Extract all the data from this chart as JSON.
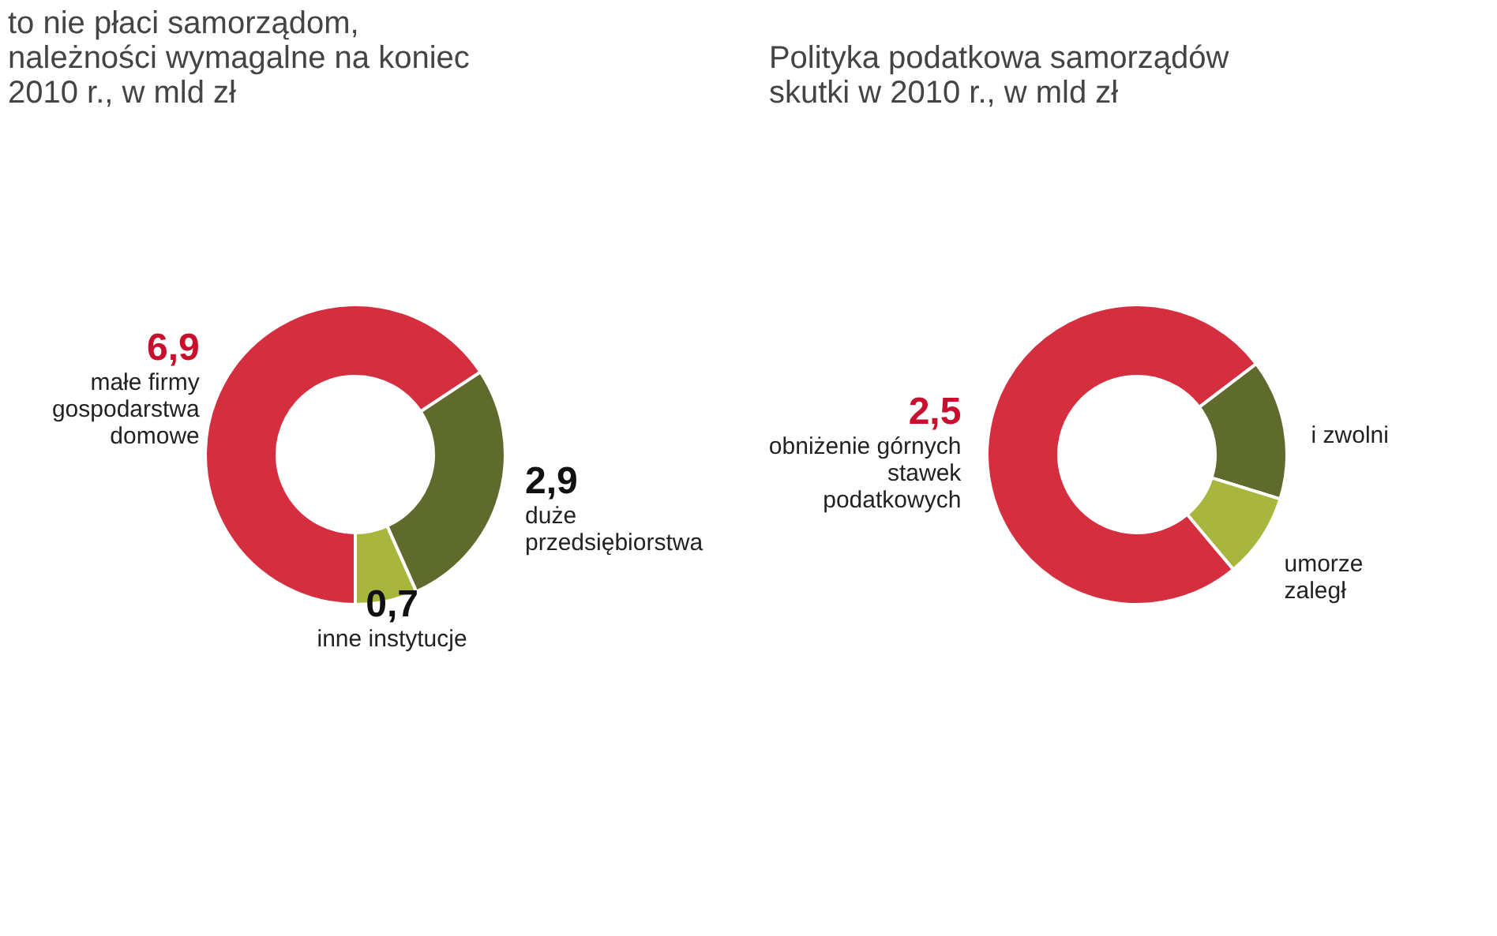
{
  "chart_data": [
    {
      "type": "donut",
      "title": "to nie płaci samorządom,\nnależności wymagalne na koniec\n2010 r., w mld zł",
      "categories": [
        "małe firmy\ngospodarstwa\ndomowe",
        "duże\nprzedsiębiorstwa",
        "inne instytucje"
      ],
      "values": [
        6.9,
        2.9,
        0.7
      ],
      "colors": [
        "#d42e3f",
        "#5f6b2c",
        "#a9b63e"
      ],
      "value_labels": [
        "6,9",
        "2,9",
        "0,7"
      ]
    },
    {
      "type": "donut",
      "title": "Polityka podatkowa samorządów\nskutki w 2010 r., w mld zł",
      "categories": [
        "obniżenie górnych\nstawek\npodatkowych",
        "i zwolni",
        "umorze\nzaległ"
      ],
      "values": [
        2.5,
        0.5,
        0.3
      ],
      "colors": [
        "#d42e3f",
        "#5f6b2c",
        "#a9b63e"
      ],
      "value_labels": [
        "2,5",
        null,
        null
      ]
    }
  ]
}
